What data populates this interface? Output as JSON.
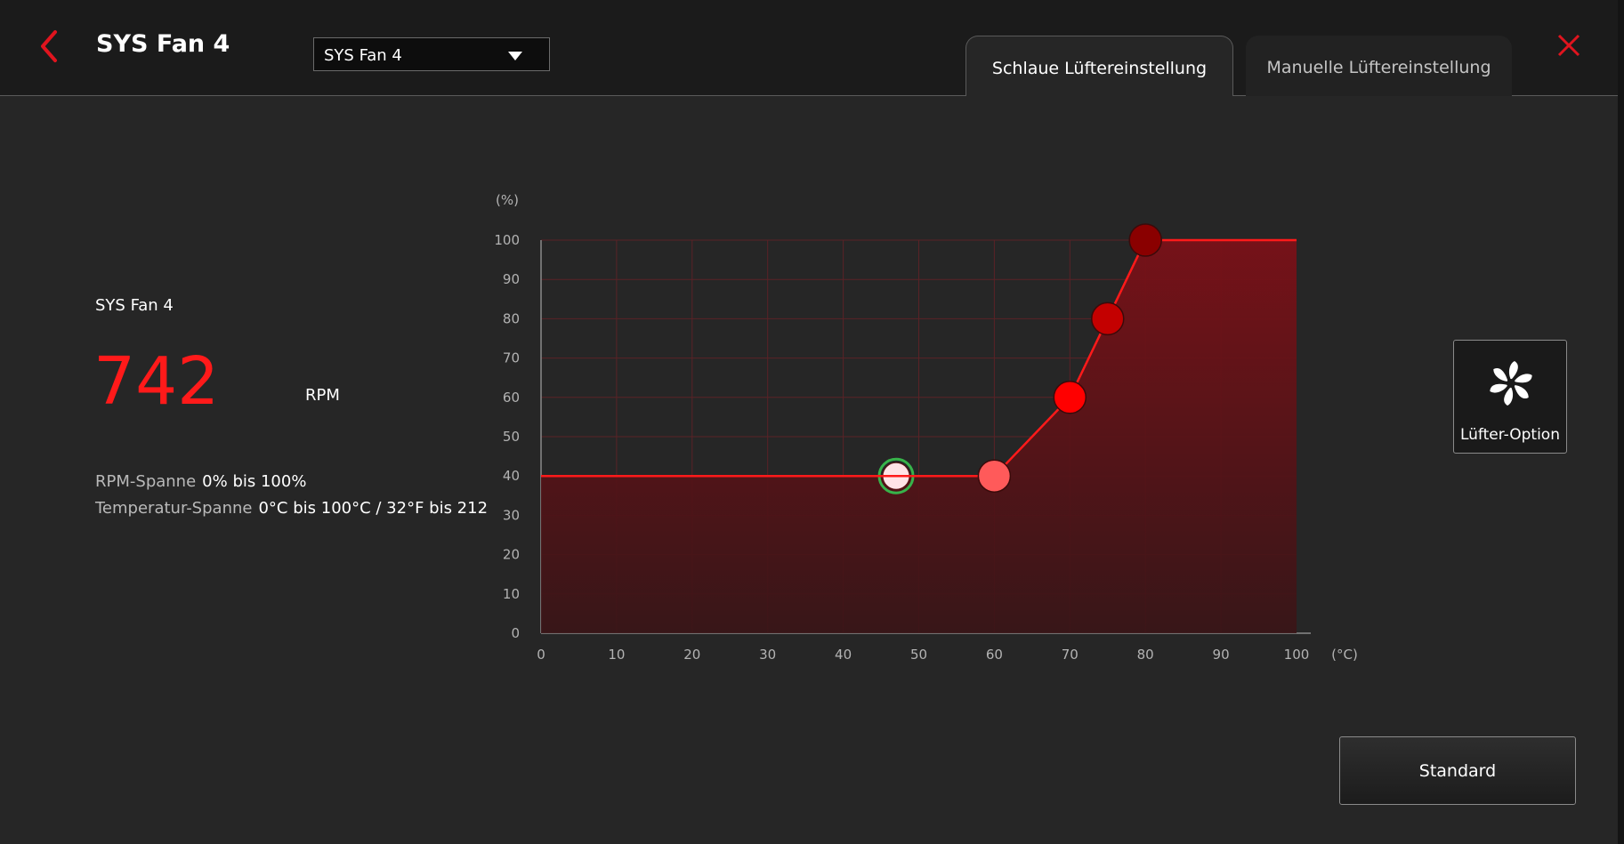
{
  "header": {
    "title": "SYS Fan 4",
    "fan_selector": {
      "selected": "SYS Fan 4"
    },
    "tabs": [
      {
        "label": "Schlaue Lüftereinstellung",
        "active": true
      },
      {
        "label": "Manuelle Lüftereinstellung",
        "active": false
      }
    ]
  },
  "left_panel": {
    "fan_name": "SYS Fan 4",
    "rpm_value": "742",
    "rpm_unit": "RPM",
    "rpm_range_label": "RPM-Spanne",
    "rpm_range_value": "0% bis 100%",
    "temp_range_label": "Temperatur-Spanne",
    "temp_range_value": "0°C bis 100°C / 32°F bis 212"
  },
  "fan_option": {
    "label": "Lüfter-Option"
  },
  "standard_button": {
    "label": "Standard"
  },
  "colors": {
    "accent": "#ff1a1a",
    "background": "#262626",
    "header": "#1b1b1b"
  },
  "chart_data": {
    "type": "line",
    "xlabel": "(°C)",
    "ylabel": "(%)",
    "xlim": [
      0,
      100
    ],
    "ylim": [
      0,
      100
    ],
    "x_ticks": [
      0,
      10,
      20,
      30,
      40,
      50,
      60,
      70,
      80,
      90,
      100
    ],
    "y_ticks": [
      0,
      10,
      20,
      30,
      40,
      50,
      60,
      70,
      80,
      90,
      100
    ],
    "grid": true,
    "curve_points": [
      {
        "x": 60,
        "y": 40,
        "color": "#ff5a5a"
      },
      {
        "x": 70,
        "y": 60,
        "color": "#ff0000"
      },
      {
        "x": 75,
        "y": 80,
        "color": "#c40000"
      },
      {
        "x": 80,
        "y": 100,
        "color": "#8a0000"
      }
    ],
    "current_point": {
      "x": 47,
      "y": 40
    }
  }
}
